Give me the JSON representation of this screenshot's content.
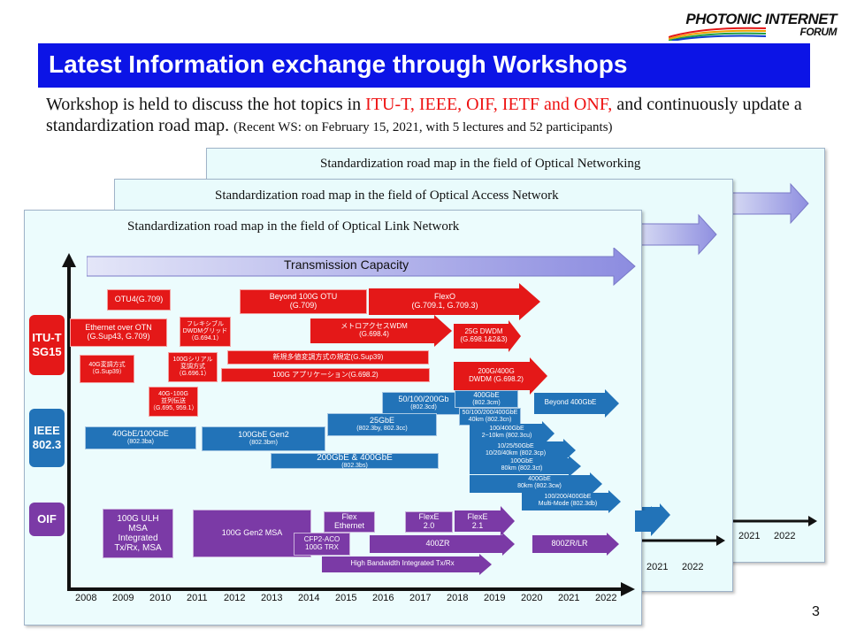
{
  "logo": {
    "line1": "PHOTONIC INTERNET",
    "line2": "FORUM"
  },
  "title": "Latest Information exchange through Workshops",
  "intro": {
    "part1": "Workshop is held to discuss the hot topics in ",
    "orgs": "ITU-T, IEEE, OIF, IETF and ONF,",
    "part2": " and continuously update a standardization road map. ",
    "note": "(Recent WS: on February 15, 2021, with 5 lectures and 52 participants)"
  },
  "panels": {
    "networking": {
      "title": "Standardization road map in the field of Optical Networking",
      "years": [
        "2021",
        "2022"
      ]
    },
    "access": {
      "title": "Standardization road map in the field of Optical Access Network",
      "years": [
        "2021",
        "2022"
      ]
    },
    "link": {
      "title": "Standardization road map in the field of Optical Link Network"
    }
  },
  "capacity_label": "Transmission Capacity",
  "orgs": {
    "itut": [
      "ITU-T",
      "SG15"
    ],
    "ieee": [
      "IEEE",
      "802.3"
    ],
    "oif": [
      "OIF"
    ]
  },
  "years": [
    "2008",
    "2009",
    "2010",
    "2011",
    "2012",
    "2013",
    "2014",
    "2015",
    "2016",
    "2017",
    "2018",
    "2019",
    "2020",
    "2021",
    "2022"
  ],
  "itut_items": {
    "otu4": "OTU4(G.709)",
    "beyond100": [
      "Beyond 100G OTU",
      "(G.709)"
    ],
    "flexo": [
      "FlexO",
      "(G.709.1, G.709.3)"
    ],
    "eth_otn": [
      "Ethernet over OTN",
      "(G.Sup43, G.709)"
    ],
    "flex_dwdm": [
      "フレキシブル",
      "DWDMグリッド",
      "（G.694.1）"
    ],
    "metro_wdm": [
      "メトロアクセスWDM",
      "(G.698.4)"
    ],
    "dwdm25": [
      "25G DWDM",
      "(G.698.1&2&3)"
    ],
    "mod40": [
      "40G変調方式",
      "（G.Sup39）"
    ],
    "serial100": [
      "100Gシリアル",
      "変調方式",
      "（G.696.1）"
    ],
    "new_mod": "新規多値変調方式の規定(G.Sup39)",
    "app100": "100G アプリケーション(G.698.2)",
    "dwdm200": [
      "200G/400G",
      "DWDM (G.698.2)"
    ],
    "parallel": [
      "40G･100G",
      "並列伝送",
      "（G.695, 959.1）"
    ]
  },
  "ieee_items": {
    "ge40_100": [
      "40GbE/100GbE",
      "(802.3ba)"
    ],
    "gen2": [
      "100GbE Gen2",
      "(802.3bm)"
    ],
    "ge200_400": [
      "200GbE & 400GbE",
      "(802.3bs)"
    ],
    "ge25": [
      "25GbE",
      "(802.3by, 802.3cc)"
    ],
    "ge50_200": [
      "50/100/200Gb",
      "(802.3cd)"
    ],
    "ge400cm": [
      "400GbE",
      "(802.3cm)"
    ],
    "ge50_400cn": [
      "50/100/200/400GbE",
      "40km (802.3cn)"
    ],
    "beyond400": "Beyond 400GbE",
    "ge100_400cu": [
      "100/400GbE",
      "2~10km (802.3cu)"
    ],
    "ge10_25_50": [
      "10/25/50GbE",
      "10/20/40km (802.3cp)"
    ],
    "ge100ct": [
      "100GbE",
      "80km (802.3ct)"
    ],
    "ge400cw": [
      "400GbE",
      "80km (802.3cw)"
    ],
    "mm": [
      "100/200/400GbE",
      "Multi-Mode (802.3db)"
    ]
  },
  "oif_items": {
    "ulh": [
      "100G ULH",
      "MSA",
      "Integrated",
      "Tx/Rx, MSA"
    ],
    "gen2msa": "100G Gen2 MSA",
    "flexe": [
      "Flex",
      "Ethernet"
    ],
    "cfp2": [
      "CFP2-ACO",
      "100G TRX"
    ],
    "flexe20": [
      "FlexE",
      "2.0"
    ],
    "flexe21": [
      "FlexE",
      "2.1"
    ],
    "zr400": "400ZR",
    "zr800": "800ZR/LR",
    "hb": "High Bandwidth Integrated  Tx/Rx"
  },
  "page_number": "3",
  "colors": {
    "title_bg": "#0c14e6",
    "red": "#e41818",
    "blue": "#2273b8",
    "purple": "#7b3aa6",
    "panel_bg": "#e9fbfc"
  }
}
